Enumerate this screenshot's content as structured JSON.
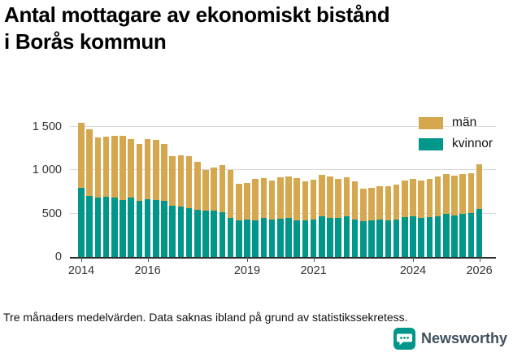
{
  "header": {
    "title_line1": "Antal mottagare av ekonomiskt bistånd",
    "title_line2": "i Borås kommun"
  },
  "chart_data": {
    "type": "bar",
    "stacked": true,
    "title": "Antal mottagare av ekonomiskt bistånd i Borås kommun",
    "xlabel": "",
    "ylabel": "",
    "grid": true,
    "legend_position": "top-right",
    "legend": [
      "män",
      "kvinnor"
    ],
    "ylim": [
      0,
      1650
    ],
    "yticks": [
      {
        "value": 0,
        "label": "0"
      },
      {
        "value": 500,
        "label": "500"
      },
      {
        "value": 1000,
        "label": "1 000"
      },
      {
        "value": 1500,
        "label": "1 500"
      }
    ],
    "xticks": [
      {
        "index": 0,
        "label": "2014"
      },
      {
        "index": 8,
        "label": "2016"
      },
      {
        "index": 20,
        "label": "2019"
      },
      {
        "index": 28,
        "label": "2021"
      },
      {
        "index": 40,
        "label": "2024"
      },
      {
        "index": 48,
        "label": "2026"
      }
    ],
    "x": [
      "2014 Q1",
      "2014 Q2",
      "2014 Q3",
      "2014 Q4",
      "2015 Q1",
      "2015 Q2",
      "2015 Q3",
      "2015 Q4",
      "2016 Q1",
      "2016 Q2",
      "2016 Q3",
      "2016 Q4",
      "2017 Q1",
      "2017 Q2",
      "2017 Q3",
      "2017 Q4",
      "2018 Q1",
      "2018 Q2",
      "2018 Q3",
      "2018 Q4",
      "2019 Q1",
      "2019 Q2",
      "2019 Q3",
      "2019 Q4",
      "2020 Q1",
      "2020 Q2",
      "2020 Q3",
      "2020 Q4",
      "2021 Q1",
      "2021 Q2",
      "2021 Q3",
      "2021 Q4",
      "2022 Q1",
      "2022 Q2",
      "2022 Q3",
      "2022 Q4",
      "2023 Q1",
      "2023 Q2",
      "2023 Q3",
      "2023 Q4",
      "2024 Q1",
      "2024 Q2",
      "2024 Q3",
      "2024 Q4",
      "2025 Q1",
      "2025 Q2",
      "2025 Q3",
      "2025 Q4",
      "2026 Q1"
    ],
    "series": [
      {
        "name": "kvinnor",
        "color": "#00968a",
        "values": [
          800,
          700,
          680,
          690,
          680,
          660,
          680,
          650,
          670,
          660,
          650,
          590,
          580,
          560,
          545,
          530,
          535,
          520,
          450,
          425,
          430,
          420,
          450,
          430,
          440,
          450,
          420,
          420,
          430,
          470,
          450,
          450,
          470,
          430,
          410,
          420,
          430,
          420,
          430,
          460,
          470,
          450,
          460,
          470,
          500,
          480,
          500,
          510,
          550
        ]
      },
      {
        "name": "män",
        "color": "#d5a74e",
        "values": [
          750,
          770,
          700,
          700,
          715,
          740,
          675,
          650,
          690,
          690,
          650,
          575,
          590,
          605,
          555,
          470,
          495,
          535,
          550,
          415,
          420,
          480,
          460,
          450,
          480,
          480,
          490,
          450,
          460,
          480,
          480,
          450,
          450,
          440,
          380,
          380,
          390,
          400,
          400,
          420,
          430,
          430,
          440,
          460,
          460,
          460,
          460,
          460,
          520
        ]
      }
    ]
  },
  "footer": {
    "note": "Tre månaders medelvärden. Data saknas ibland på grund av statistikssekretess.",
    "brand": "Newsworthy"
  }
}
